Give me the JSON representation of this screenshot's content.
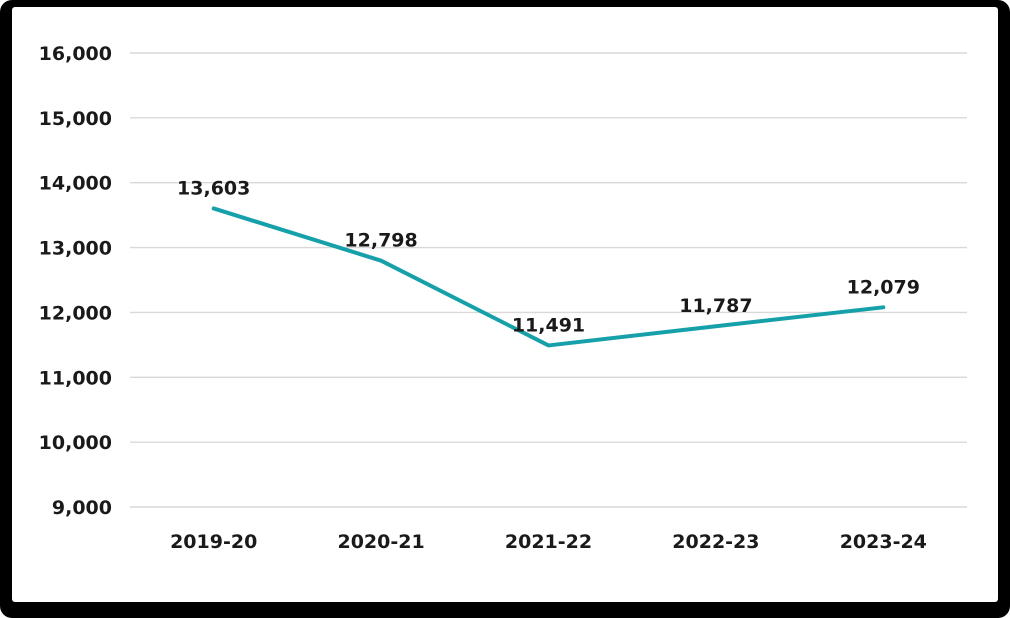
{
  "frame": {
    "background_color": "#000000",
    "surface_color": "#ffffff"
  },
  "chart_data": {
    "type": "line",
    "title": "",
    "xlabel": "",
    "ylabel": "",
    "categories": [
      "2019-20",
      "2020-21",
      "2021-22",
      "2022-23",
      "2023-24"
    ],
    "series": [
      {
        "name": "",
        "values": [
          13603,
          12798,
          11491,
          11787,
          12079
        ],
        "data_labels": [
          "13,603",
          "12,798",
          "11,491",
          "11,787",
          "12,079"
        ],
        "color": "#16A0AA"
      }
    ],
    "ylim": [
      9000,
      16000
    ],
    "y_ticks": [
      16000,
      15000,
      14000,
      13000,
      12000,
      11000,
      10000,
      9000
    ],
    "y_tick_labels": [
      "16,000",
      "15,000",
      "14,000",
      "13,000",
      "12,000",
      "11,000",
      "10,000",
      "9,000"
    ],
    "grid": true,
    "legend": "none",
    "gridline_color": "#D9D9D9",
    "text_color": "#1a1a1a"
  }
}
